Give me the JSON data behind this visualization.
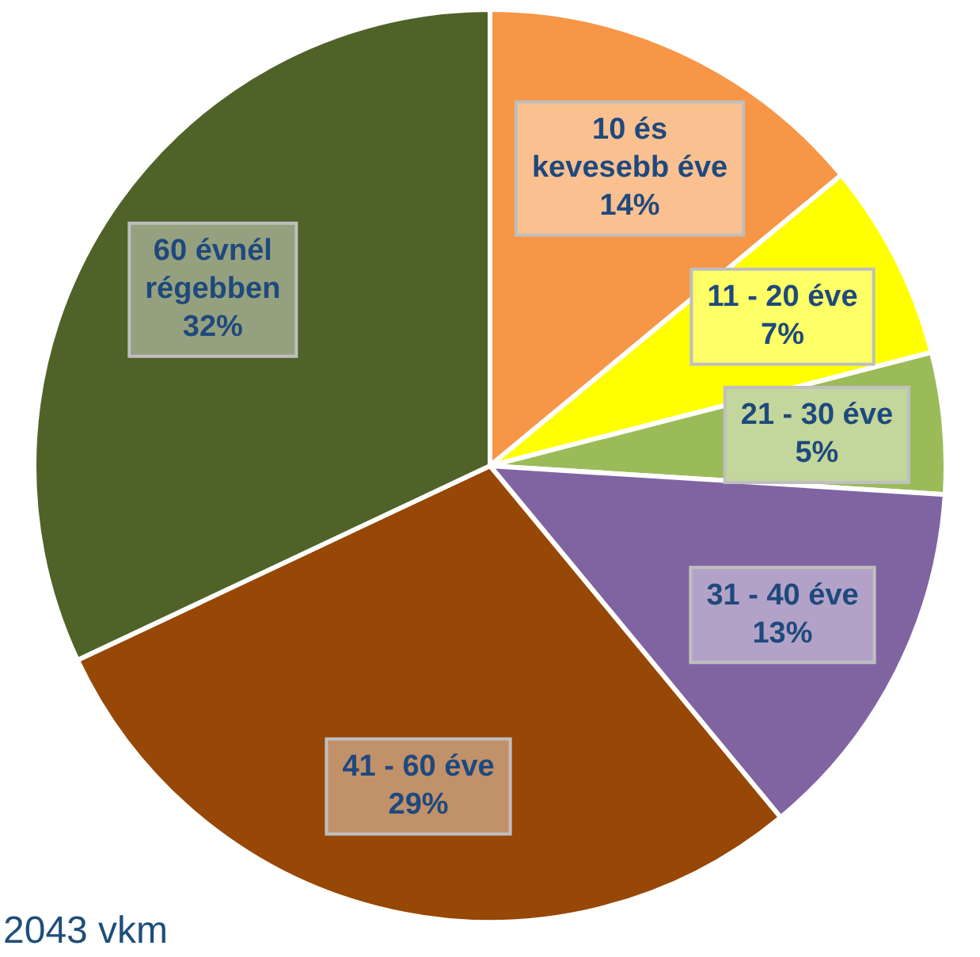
{
  "chart_data": {
    "type": "pie",
    "categories": [
      "10 és kevesebb éve",
      "11 - 20 éve",
      "21 - 30 éve",
      "31 - 40 éve",
      "41 - 60 éve",
      "60 évnél régebben"
    ],
    "values": [
      14,
      7,
      5,
      13,
      29,
      32
    ],
    "colors": [
      "#f79646",
      "#ffff00",
      "#9bbb59",
      "#8064a2",
      "#974706",
      "#4f6228"
    ],
    "value_labels": [
      "14%",
      "7%",
      "5%",
      "13%",
      "29%",
      "32%"
    ],
    "legend": false,
    "annotations": [
      "2043 vkm"
    ]
  }
}
